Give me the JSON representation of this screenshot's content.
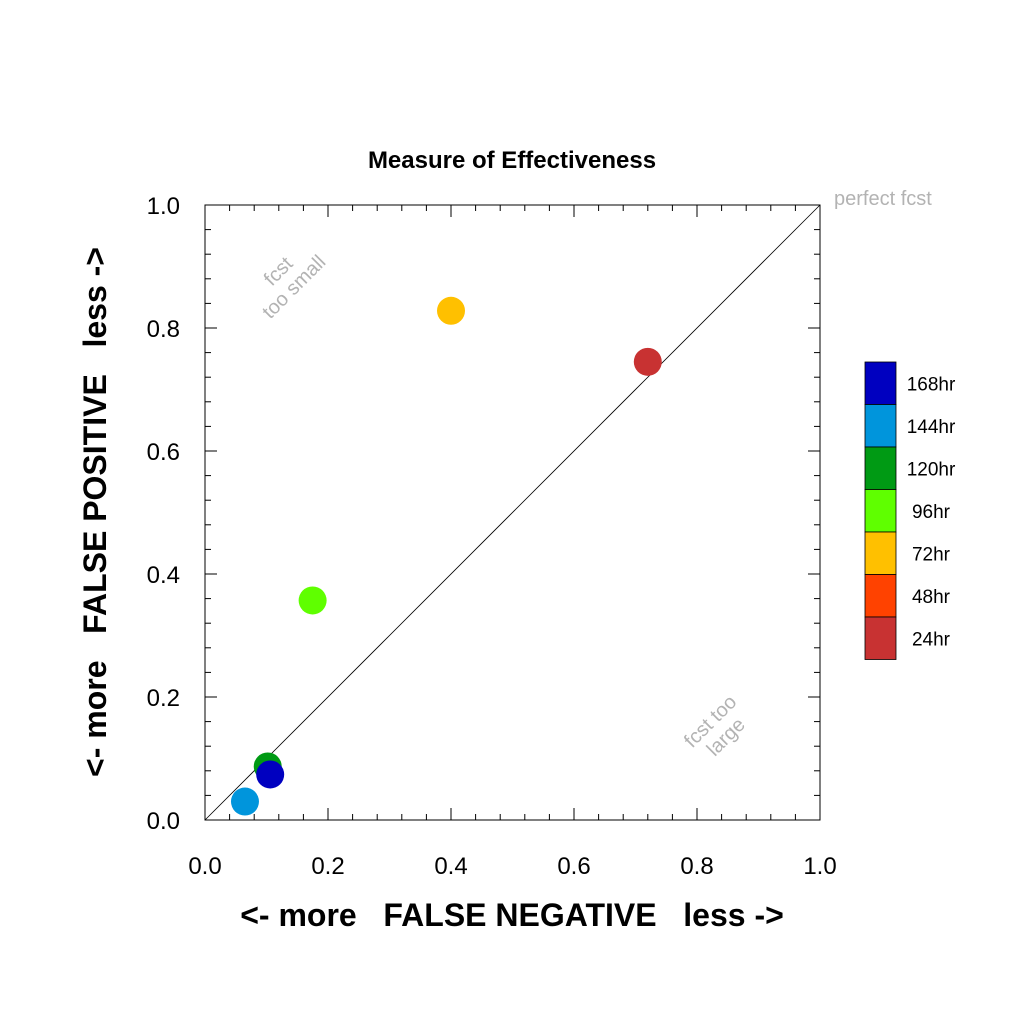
{
  "chart_data": {
    "type": "scatter",
    "title": "Measure of Effectiveness",
    "xlabel": "<- more   FALSE NEGATIVE   less ->",
    "ylabel": "<- more   FALSE POSITIVE   less ->",
    "xlim": [
      0.0,
      1.0
    ],
    "ylim": [
      0.0,
      1.0
    ],
    "xticks": [
      "0.0",
      "0.2",
      "0.4",
      "0.6",
      "0.8",
      "1.0"
    ],
    "yticks": [
      "0.0",
      "0.2",
      "0.4",
      "0.6",
      "0.8",
      "1.0"
    ],
    "grid": false,
    "diagonal_reference": true,
    "annotations": {
      "perfect": "perfect fcst",
      "small_line1": "fcst",
      "small_line2": "too small",
      "large_line1": "fcst too",
      "large_line2": "large"
    },
    "legend": [
      {
        "label": "168hr",
        "color": "#0000c0"
      },
      {
        "label": "144hr",
        "color": "#0095dc"
      },
      {
        "label": "120hr",
        "color": "#009a14"
      },
      {
        "label": "96hr",
        "color": "#5fff00"
      },
      {
        "label": "72hr",
        "color": "#ffc000"
      },
      {
        "label": "48hr",
        "color": "#ff4200"
      },
      {
        "label": "24hr",
        "color": "#c83232"
      }
    ],
    "points": [
      {
        "label": "24hr",
        "x": 0.72,
        "y": 0.745,
        "color": "#c83232"
      },
      {
        "label": "72hr",
        "x": 0.4,
        "y": 0.828,
        "color": "#ffc000"
      },
      {
        "label": "96hr",
        "x": 0.175,
        "y": 0.357,
        "color": "#5fff00"
      },
      {
        "label": "120hr",
        "x": 0.102,
        "y": 0.087,
        "color": "#009a14"
      },
      {
        "label": "144hr",
        "x": 0.065,
        "y": 0.03,
        "color": "#0095dc"
      },
      {
        "label": "168hr",
        "x": 0.106,
        "y": 0.074,
        "color": "#0000c0"
      }
    ]
  }
}
